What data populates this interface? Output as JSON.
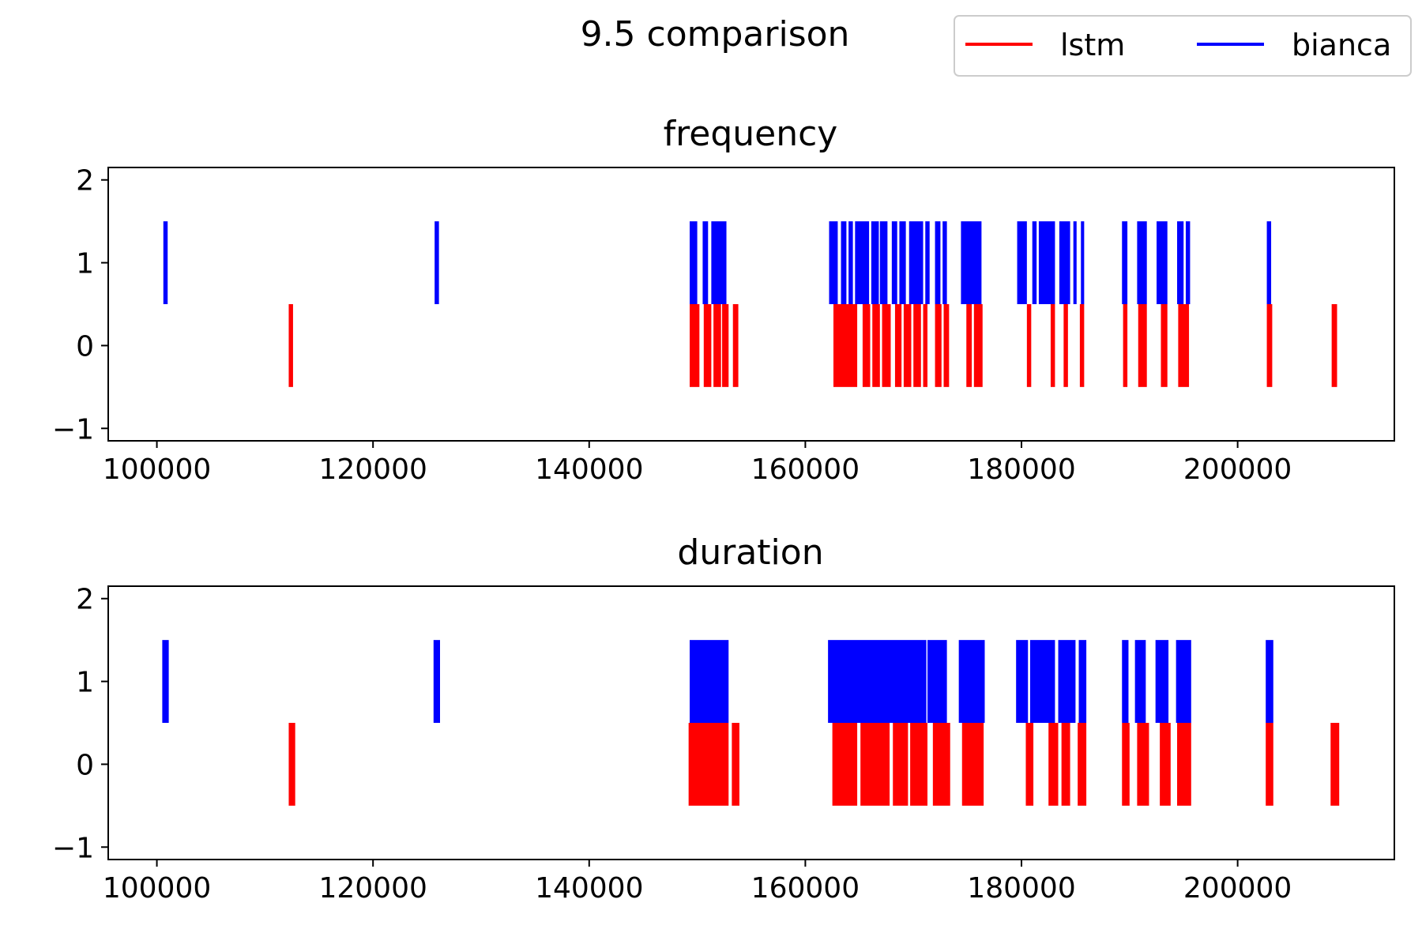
{
  "figure": {
    "title": "9.5 comparison"
  },
  "legend": {
    "placement": "top-right",
    "items": [
      {
        "label": "lstm",
        "color": "#ff0000"
      },
      {
        "label": "bianca",
        "color": "#0000ff"
      }
    ]
  },
  "chart_data": [
    {
      "type": "bar",
      "title": "frequency",
      "xlabel": "",
      "ylabel": "",
      "xlim": [
        95500,
        214500
      ],
      "ylim": [
        -1.15,
        2.15
      ],
      "xticks": [
        100000,
        120000,
        140000,
        160000,
        180000,
        200000
      ],
      "yticks": [
        -1,
        0,
        1,
        2
      ],
      "ytick_labels": [
        "−1",
        "0",
        "1",
        "2"
      ],
      "grid": false,
      "series": [
        {
          "name": "lstm",
          "color": "#ff0000",
          "y_range": [
            -0.5,
            0.5
          ],
          "spans": [
            [
              112200,
              112600
            ],
            [
              149300,
              150200
            ],
            [
              150600,
              151300
            ],
            [
              151500,
              152200
            ],
            [
              152300,
              152900
            ],
            [
              153300,
              153800
            ],
            [
              162600,
              164800
            ],
            [
              165300,
              166000
            ],
            [
              166200,
              166900
            ],
            [
              167100,
              167900
            ],
            [
              168300,
              168900
            ],
            [
              169100,
              169800
            ],
            [
              170000,
              170700
            ],
            [
              170900,
              171300
            ],
            [
              172000,
              172600
            ],
            [
              172800,
              173300
            ],
            [
              174900,
              175400
            ],
            [
              175600,
              176400
            ],
            [
              180500,
              180900
            ],
            [
              182700,
              183100
            ],
            [
              183900,
              184300
            ],
            [
              185400,
              185800
            ],
            [
              189400,
              189800
            ],
            [
              190800,
              191600
            ],
            [
              192900,
              193500
            ],
            [
              194500,
              195500
            ],
            [
              202700,
              203200
            ],
            [
              208700,
              209200
            ]
          ]
        },
        {
          "name": "bianca",
          "color": "#0000ff",
          "y_range": [
            0.5,
            1.5
          ],
          "spans": [
            [
              100600,
              101000
            ],
            [
              125700,
              126100
            ],
            [
              149300,
              150000
            ],
            [
              150500,
              151000
            ],
            [
              151300,
              152700
            ],
            [
              162200,
              163000
            ],
            [
              163300,
              163800
            ],
            [
              164000,
              164400
            ],
            [
              164600,
              165900
            ],
            [
              166100,
              166800
            ],
            [
              166900,
              167600
            ],
            [
              168000,
              168500
            ],
            [
              168700,
              169300
            ],
            [
              169600,
              170900
            ],
            [
              171100,
              171500
            ],
            [
              172000,
              172500
            ],
            [
              172700,
              173100
            ],
            [
              174400,
              176300
            ],
            [
              179600,
              180500
            ],
            [
              181000,
              181400
            ],
            [
              181600,
              183100
            ],
            [
              183500,
              184500
            ],
            [
              184800,
              185100
            ],
            [
              185500,
              185800
            ],
            [
              189300,
              189800
            ],
            [
              190700,
              191600
            ],
            [
              192500,
              193500
            ],
            [
              194400,
              195000
            ],
            [
              195200,
              195600
            ],
            [
              202700,
              203100
            ]
          ]
        }
      ]
    },
    {
      "type": "bar",
      "title": "duration",
      "xlabel": "",
      "ylabel": "",
      "xlim": [
        95500,
        214500
      ],
      "ylim": [
        -1.15,
        2.15
      ],
      "xticks": [
        100000,
        120000,
        140000,
        160000,
        180000,
        200000
      ],
      "yticks": [
        -1,
        0,
        1,
        2
      ],
      "ytick_labels": [
        "−1",
        "0",
        "1",
        "2"
      ],
      "grid": false,
      "series": [
        {
          "name": "lstm",
          "color": "#ff0000",
          "y_range": [
            -0.5,
            0.5
          ],
          "spans": [
            [
              112200,
              112800
            ],
            [
              149200,
              152900
            ],
            [
              153200,
              153900
            ],
            [
              162500,
              164800
            ],
            [
              165100,
              167800
            ],
            [
              168100,
              169500
            ],
            [
              169700,
              171300
            ],
            [
              171800,
              173400
            ],
            [
              174500,
              176500
            ],
            [
              180400,
              181100
            ],
            [
              182500,
              183400
            ],
            [
              183700,
              184500
            ],
            [
              185200,
              186000
            ],
            [
              189300,
              190000
            ],
            [
              190700,
              191800
            ],
            [
              192800,
              193800
            ],
            [
              194400,
              195700
            ],
            [
              202600,
              203300
            ],
            [
              208600,
              209400
            ]
          ]
        },
        {
          "name": "bianca",
          "color": "#0000ff",
          "y_range": [
            0.5,
            1.5
          ],
          "spans": [
            [
              100500,
              101100
            ],
            [
              125600,
              126200
            ],
            [
              149300,
              152900
            ],
            [
              162100,
              171200
            ],
            [
              171300,
              173100
            ],
            [
              174200,
              176600
            ],
            [
              179500,
              180600
            ],
            [
              180800,
              183100
            ],
            [
              183400,
              185000
            ],
            [
              185300,
              186000
            ],
            [
              189300,
              189900
            ],
            [
              190500,
              191500
            ],
            [
              192400,
              193600
            ],
            [
              194300,
              195700
            ],
            [
              202600,
              203300
            ]
          ]
        }
      ]
    }
  ]
}
